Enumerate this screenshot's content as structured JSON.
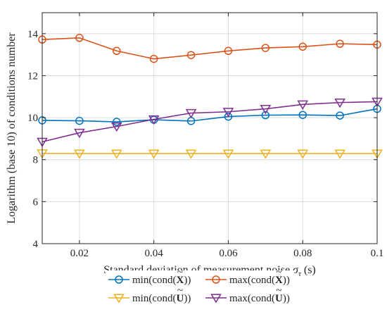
{
  "chart_data": {
    "type": "line",
    "title": "",
    "xlabel": "Standard deviation of measurement noise σ_τ (s)",
    "xlabel_main": "Standard deviation of measurement noise ",
    "xlabel_symbol": "σ",
    "xlabel_subscript": "τ",
    "xlabel_unit": " (s)",
    "ylabel": "Logarithm (base 10) of conditions number",
    "xlim": [
      0.01,
      0.1
    ],
    "ylim": [
      4,
      15
    ],
    "xticks": [
      0.02,
      0.04,
      0.06,
      0.08,
      0.1
    ],
    "xtick_labels": [
      "0.02",
      "0.04",
      "0.06",
      "0.08",
      "0.1"
    ],
    "yticks": [
      4,
      6,
      8,
      10,
      12,
      14
    ],
    "ytick_labels": [
      "4",
      "6",
      "8",
      "10",
      "12",
      "14"
    ],
    "grid": true,
    "legend_position": "bottom-outside",
    "x": [
      0.01,
      0.02,
      0.03,
      0.04,
      0.05,
      0.06,
      0.07,
      0.08,
      0.09,
      0.1
    ],
    "series": [
      {
        "name": "min(cond(X̃))",
        "fn": "min",
        "symbol": "X",
        "color": "#0072BD",
        "marker": "circle",
        "values": [
          9.87,
          9.85,
          9.8,
          9.9,
          9.84,
          10.05,
          10.12,
          10.13,
          10.1,
          10.42
        ]
      },
      {
        "name": "max(cond(X̃))",
        "fn": "max",
        "symbol": "X",
        "color": "#D95319",
        "marker": "circle",
        "values": [
          13.72,
          13.8,
          13.18,
          12.8,
          12.98,
          13.18,
          13.32,
          13.38,
          13.52,
          13.48
        ]
      },
      {
        "name": "min(cond(Ũ))",
        "fn": "min",
        "symbol": "U",
        "color": "#EDB120",
        "marker": "triangle-down",
        "values": [
          8.3,
          8.29,
          8.29,
          8.29,
          8.29,
          8.29,
          8.29,
          8.29,
          8.29,
          8.29
        ]
      },
      {
        "name": "max(cond(Ũ))",
        "fn": "max",
        "symbol": "U",
        "color": "#7E2F8E",
        "marker": "triangle-down",
        "values": [
          8.85,
          9.28,
          9.58,
          9.92,
          10.22,
          10.28,
          10.42,
          10.63,
          10.72,
          10.76
        ]
      }
    ],
    "legend_cond": "cond",
    "legend_tilde": "~"
  }
}
